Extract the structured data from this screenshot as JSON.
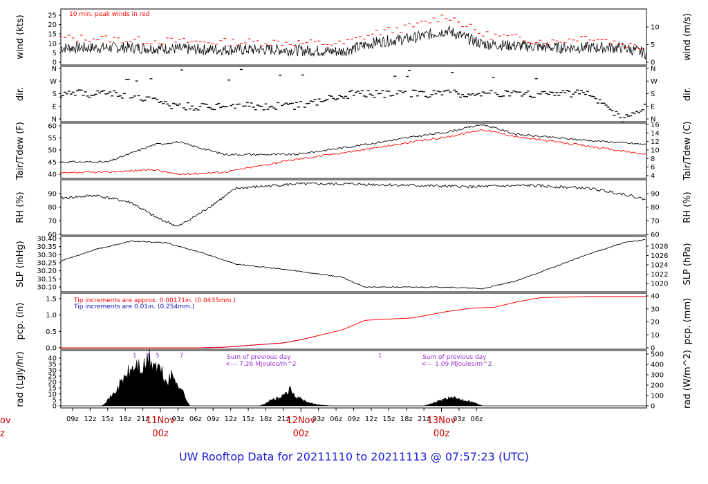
{
  "title": "UW Rooftop Data for 20211110  to  20211113 @ 07:57:23  (UTC)",
  "time_axis": {
    "hours": [
      "09z",
      "12z",
      "15z",
      "18z",
      "21z",
      "03z",
      "06z",
      "09z",
      "12z",
      "15z",
      "18z",
      "21z",
      "03z",
      "06z",
      "09z",
      "12z",
      "15z",
      "18z",
      "21z",
      "03z",
      "06z"
    ],
    "days": [
      {
        "name": "11Nov",
        "hour": "00z"
      },
      {
        "name": "12Nov",
        "hour": "00z"
      },
      {
        "name": "13Nov",
        "hour": "00z"
      }
    ],
    "cut_day_top": "ov",
    "cut_day_bottom": "z"
  },
  "panels": {
    "wind": {
      "ylabel_left": "wind (kts)",
      "ylabel_right": "wind (m/s)",
      "ticks_left": [
        "0",
        "5",
        "10",
        "15",
        "20",
        "25"
      ],
      "ticks_right": [
        "0",
        "5",
        "10"
      ],
      "note": "10 min. peak winds in red"
    },
    "dir": {
      "ylabel_left": "dir.",
      "ylabel_right": "dir.",
      "ticks": [
        "N",
        "E",
        "S",
        "W",
        "N"
      ]
    },
    "temp": {
      "ylabel_left": "Tair/Tdew (F)",
      "ylabel_right": "Tair/Tdew (C)",
      "ticks_left": [
        "40",
        "45",
        "50",
        "55",
        "60"
      ],
      "ticks_right": [
        "4",
        "6",
        "8",
        "10",
        "12",
        "14",
        "16"
      ]
    },
    "rh": {
      "ylabel_left": "RH (%)",
      "ylabel_right": "RH (%)",
      "ticks": [
        "60",
        "70",
        "80",
        "90"
      ]
    },
    "slp": {
      "ylabel_left": "SLP (inHg)",
      "ylabel_right": "SLP (hPa)",
      "ticks_left": [
        "30.10",
        "30.15",
        "30.20",
        "30.25",
        "30.30",
        "30.35",
        "30.40"
      ],
      "ticks_right": [
        "1020",
        "1022",
        "1024",
        "1026",
        "1028"
      ]
    },
    "pcp": {
      "ylabel_left": "pcp. (in)",
      "ylabel_right": "pcp. (mm)",
      "ticks_left": [
        "0.0",
        "0.5",
        "1.0",
        "1.5"
      ],
      "ticks_right": [
        "0",
        "10",
        "20",
        "30",
        "40"
      ],
      "note_red": "Tip increments are approx. 0.00171in. (0.0435mm.)",
      "note_blue": "Tip increments are 0.01in. (0.254mm.)"
    },
    "rad": {
      "ylabel_left": "rad (Lgly/hr)",
      "ylabel_right": "rad (W/m^2)",
      "ticks_left": [
        "0",
        "5",
        "10",
        "15",
        "20",
        "25",
        "30",
        "35",
        "40"
      ],
      "ticks_right": [
        "0",
        "100",
        "200",
        "300",
        "400",
        "500"
      ],
      "sum1_a": "Sum of previous day",
      "sum1_b": "<--- 7.26 MJoules/m^2",
      "sum2_a": "Sum of previous day",
      "sum2_b": "<--- 1.09 MJoules/m^2",
      "marks": [
        "1",
        "3",
        "5",
        "7",
        "1"
      ]
    }
  },
  "colors": {
    "peak": "#ff0000",
    "dewpoint": "#ff0000",
    "pcp_blue": "#1010c0",
    "sum_text": "#9933cc",
    "day_label": "#cc0000",
    "title": "#1a1ad4"
  },
  "chart_data": [
    {
      "type": "line",
      "title": "wind",
      "x_unit": "hours since 2021-11-10 07:00Z",
      "ylim": [
        0,
        28
      ],
      "series": [
        {
          "name": "wind",
          "x": [
            0,
            6,
            12,
            24,
            36,
            48,
            54,
            60,
            66,
            72,
            78,
            84,
            90,
            96,
            100
          ],
          "values": [
            8,
            8,
            8,
            7,
            7,
            6,
            11,
            13,
            17,
            10,
            9,
            8,
            8,
            8,
            5
          ]
        },
        {
          "name": "10 min. peak winds in red",
          "x": [
            0,
            6,
            12,
            24,
            36,
            48,
            54,
            60,
            66,
            72,
            78,
            84,
            90,
            96,
            100
          ],
          "values": [
            13,
            13,
            12,
            11,
            11,
            10,
            16,
            19,
            25,
            15,
            13,
            11,
            14,
            10,
            8
          ]
        }
      ]
    },
    {
      "type": "scatter",
      "title": "dir.",
      "x": [
        0,
        10,
        20,
        30,
        40,
        50,
        60,
        70,
        80,
        90,
        96,
        100
      ],
      "values": [
        "S",
        "S",
        "E",
        "E",
        "E",
        "S",
        "S",
        "S",
        "S",
        "S",
        "N",
        "E"
      ]
    },
    {
      "type": "line",
      "title": "Tair/Tdew",
      "ylim": [
        39,
        60
      ],
      "series": [
        {
          "name": "Tair",
          "x": [
            0,
            8,
            16,
            20,
            28,
            40,
            52,
            60,
            66,
            72,
            78,
            88,
            100
          ],
          "values": [
            45,
            45,
            52,
            53,
            48,
            48,
            52,
            55,
            57,
            60,
            56,
            54,
            52
          ]
        },
        {
          "name": "Tdew",
          "x": [
            0,
            8,
            16,
            20,
            28,
            40,
            52,
            60,
            66,
            72,
            78,
            88,
            100
          ],
          "values": [
            40.5,
            41,
            42,
            40,
            41,
            46,
            50,
            53,
            55,
            58,
            55,
            52,
            48
          ]
        }
      ]
    },
    {
      "type": "line",
      "title": "RH",
      "ylim": [
        60,
        97
      ],
      "series": [
        {
          "name": "RH",
          "x": [
            0,
            6,
            12,
            16,
            20,
            24,
            30,
            40,
            50,
            60,
            70,
            80,
            90,
            96,
            100
          ],
          "values": [
            85,
            87,
            82,
            72,
            65,
            75,
            92,
            95,
            95,
            94,
            93,
            94,
            92,
            88,
            84
          ]
        }
      ]
    },
    {
      "type": "line",
      "title": "SLP",
      "ylim": [
        30.08,
        30.4
      ],
      "series": [
        {
          "name": "SLP",
          "x": [
            0,
            6,
            12,
            18,
            24,
            30,
            40,
            48,
            52,
            60,
            66,
            72,
            78,
            84,
            90,
            96,
            100
          ],
          "values": [
            30.26,
            30.33,
            30.38,
            30.37,
            30.31,
            30.24,
            30.2,
            30.16,
            30.1,
            30.1,
            30.1,
            30.09,
            30.14,
            30.22,
            30.3,
            30.37,
            30.39
          ]
        }
      ]
    },
    {
      "type": "line",
      "title": "pcp.",
      "ylim": [
        0,
        1.6
      ],
      "series": [
        {
          "name": "pcp",
          "x": [
            0,
            24,
            28,
            31,
            38,
            41,
            48,
            52,
            60,
            66,
            70,
            74,
            78,
            82,
            90,
            100
          ],
          "values": [
            0.0,
            0.0,
            0.02,
            0.06,
            0.15,
            0.25,
            0.55,
            0.85,
            0.92,
            1.12,
            1.22,
            1.25,
            1.42,
            1.55,
            1.58,
            1.58
          ]
        }
      ]
    },
    {
      "type": "area",
      "title": "rad",
      "ylim": [
        0,
        42
      ],
      "series": [
        {
          "name": "rad",
          "x": [
            0,
            7,
            9,
            11,
            13,
            14,
            15,
            16,
            17,
            18,
            19,
            20,
            22,
            34,
            36,
            38,
            39,
            40,
            41,
            42,
            44,
            46,
            62,
            64,
            65,
            66,
            68,
            70,
            72,
            100
          ],
          "values": [
            0,
            0,
            10,
            25,
            35,
            30,
            40,
            35,
            30,
            20,
            25,
            20,
            0,
            0,
            5,
            8,
            14,
            8,
            6,
            3,
            1,
            0,
            0,
            3,
            5,
            7,
            6,
            4,
            0,
            0
          ]
        }
      ]
    }
  ]
}
